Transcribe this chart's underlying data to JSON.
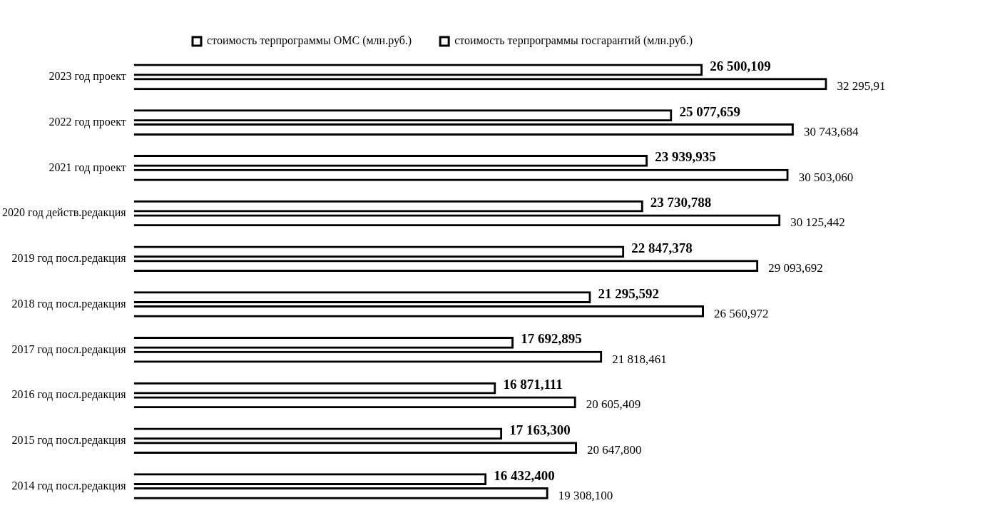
{
  "chart_data": {
    "type": "bar",
    "orientation": "horizontal",
    "legend": "top",
    "grid": false,
    "tick_labels": "y",
    "categories": [
      "2023 год проект",
      "2022 год проект",
      "2021 год проект",
      "2020 год действ.редакция",
      "2019 год посл.редакция",
      "2018 год посл.редакция",
      "2017 год посл.редакция",
      "2016 год посл.редакция",
      "2015 год посл.редакция",
      "2014 год посл.редакция"
    ],
    "series": [
      {
        "name": "стоимость терпрограммы ОМС (млн.руб.)",
        "color": "#000000",
        "values": [
          26500.109,
          25077.659,
          23939.935,
          23730.788,
          22847.378,
          21295.592,
          17692.895,
          16871.111,
          17163.3,
          16432.4
        ],
        "value_labels": [
          "26 500,109",
          "25 077,659",
          "23 939,935",
          "23 730,788",
          "22 847,378",
          "21 295,592",
          "17 692,895",
          "16 871,111",
          "17 163,300",
          "16 432,400"
        ]
      },
      {
        "name": "стоимость терпрограммы госгарантий (млн.руб.)",
        "color": "#000000",
        "values": [
          32295.91,
          30743.684,
          30503.06,
          30125.442,
          29093.692,
          26560.972,
          21818.461,
          20605.409,
          20647.8,
          19308.1
        ],
        "value_labels": [
          "32 295,91",
          "30 743,684",
          "30 503,060",
          "30 125,442",
          "29 093,692",
          "26 560,972",
          "21 818,461",
          "20 605,409",
          "20 647,800",
          "19 308,100"
        ]
      }
    ]
  }
}
